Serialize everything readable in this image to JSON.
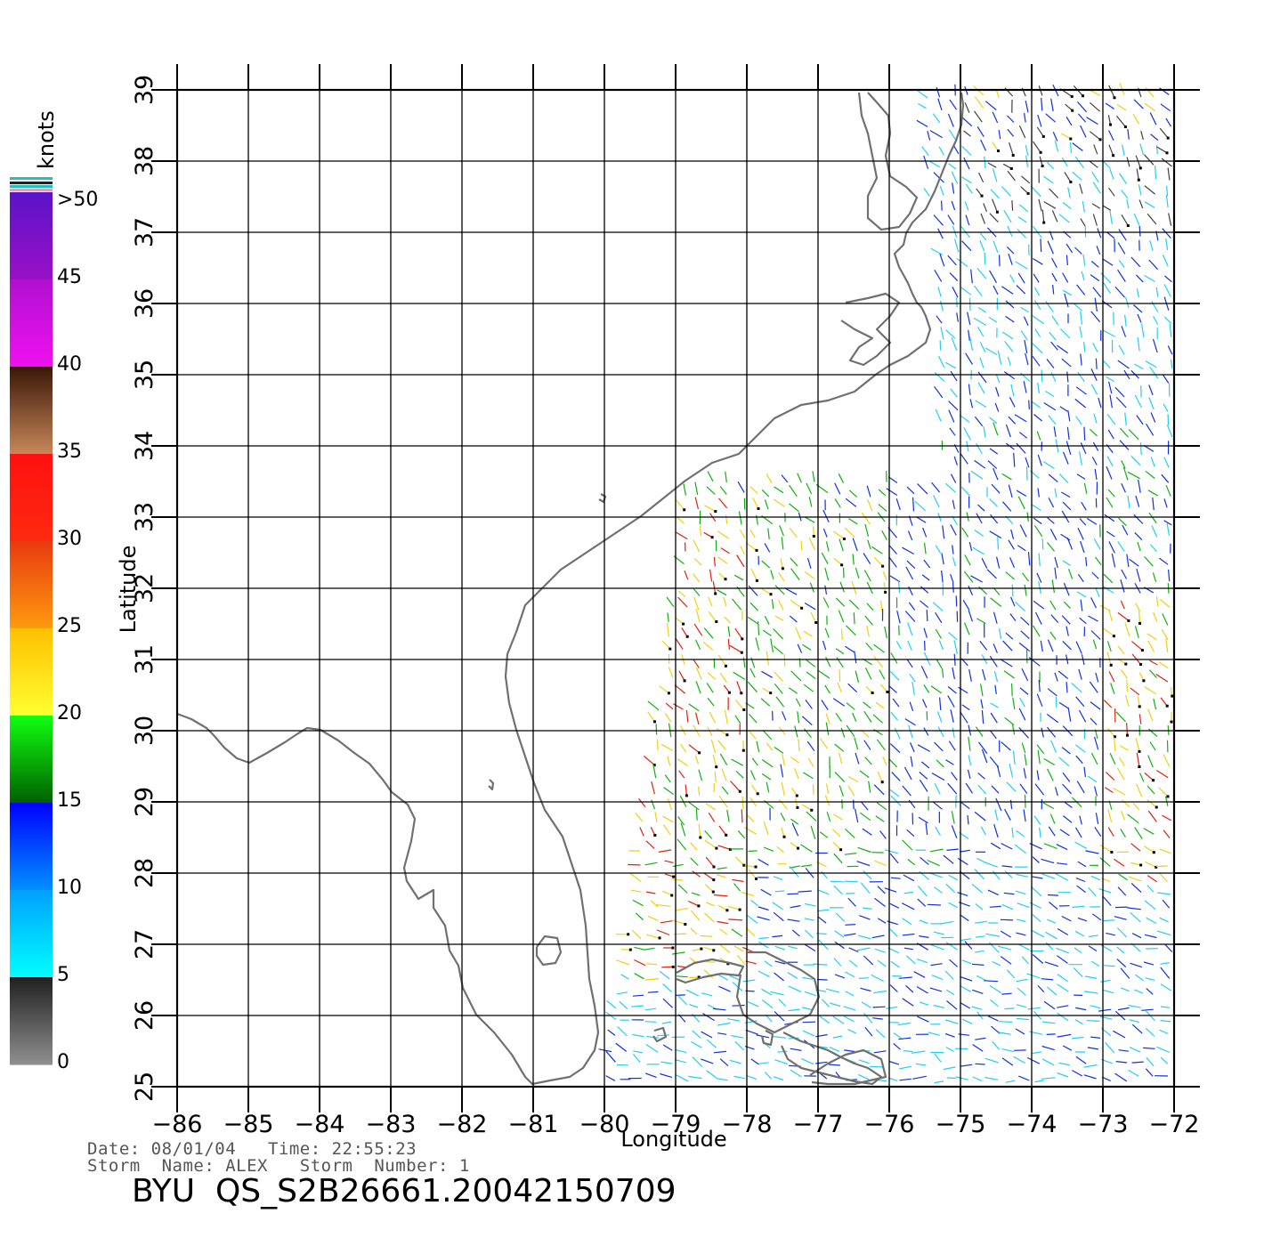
{
  "map": {
    "x_label": "Longitude",
    "y_label": "Latitude",
    "lon_ticks": [
      "−86",
      "−85",
      "−84",
      "−83",
      "−82",
      "−81",
      "−80",
      "−79",
      "−78",
      "−77",
      "−76",
      "−75",
      "−74",
      "−73",
      "−72"
    ],
    "lat_ticks": [
      "25",
      "26",
      "27",
      "28",
      "29",
      "30",
      "31",
      "32",
      "33",
      "34",
      "35",
      "36",
      "37",
      "38",
      "39"
    ],
    "lon_range": [
      -86,
      -72
    ],
    "lat_range": [
      25,
      39
    ],
    "coastline_color": "#707070",
    "grid": true
  },
  "colorbar": {
    "title": "knots",
    "labels": [
      ">50",
      "45",
      "40",
      "35",
      "30",
      "25",
      "20",
      "15",
      "10",
      "5",
      "0"
    ],
    "bands": [
      {
        "range": [
          45,
          50
        ],
        "top": "#5a14c8",
        "bottom": "#9a10c8"
      },
      {
        "range": [
          40,
          45
        ],
        "top": "#b010d0",
        "bottom": "#f010f0"
      },
      {
        "range": [
          35,
          40
        ],
        "top": "#3a1608",
        "bottom": "#c8885a"
      },
      {
        "range": [
          30,
          35
        ],
        "top": "#ff1010",
        "bottom": "#ff2a10"
      },
      {
        "range": [
          25,
          30
        ],
        "top": "#e83a10",
        "bottom": "#ff9a10"
      },
      {
        "range": [
          20,
          25
        ],
        "top": "#ffc000",
        "bottom": "#ffff30"
      },
      {
        "range": [
          15,
          20
        ],
        "top": "#10ff10",
        "bottom": "#006000"
      },
      {
        "range": [
          10,
          15
        ],
        "top": "#0000ff",
        "bottom": "#0090ff"
      },
      {
        "range": [
          5,
          10
        ],
        "top": "#00a0ff",
        "bottom": "#00ffff"
      },
      {
        "range": [
          0,
          5
        ],
        "top": "#202020",
        "bottom": "#909090"
      }
    ]
  },
  "wind_colors": {
    "calm": "#404040",
    "light": "#20d0f0",
    "moderate": "#1030e0",
    "fresh": "#10b010",
    "strong": "#f0d010",
    "gale": "#e02010",
    "rain_flag": "#000000"
  },
  "footer": {
    "date_line": "Date: 08/01/04   Time: 22:55:23",
    "storm_line": "Storm  Name: ALEX   Storm  Number: 1",
    "product_id": "BYU  QS_S2B26661.20042150709"
  }
}
